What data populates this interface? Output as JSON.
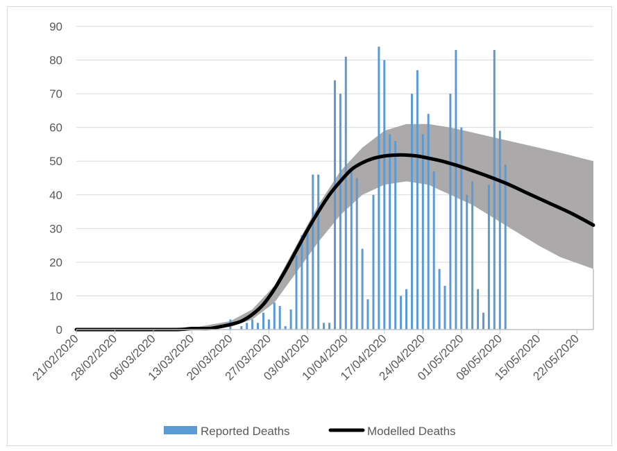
{
  "chart_data": {
    "type": "bar",
    "title": "",
    "xlabel": "",
    "ylabel": "",
    "ylim": [
      0,
      90
    ],
    "yticks": [
      0,
      10,
      20,
      30,
      40,
      50,
      60,
      70,
      80,
      90
    ],
    "xticks": [
      "21/02/2020",
      "28/02/2020",
      "06/03/2020",
      "13/03/2020",
      "20/03/2020",
      "27/03/2020",
      "03/04/2020",
      "10/04/2020",
      "17/04/2020",
      "24/04/2020",
      "01/05/2020",
      "08/05/2020",
      "15/05/2020",
      "22/05/2020"
    ],
    "grid": true,
    "legend_position": "bottom",
    "colors": {
      "bars": "#5b9bd5",
      "line": "#000000",
      "band": "#aba9a9",
      "grid": "#d9d9d9",
      "axis": "#bfbfbf",
      "text": "#595959"
    },
    "series": [
      {
        "name": "Reported Deaths",
        "type": "bar",
        "x": [
          "2020-03-20",
          "2020-03-22",
          "2020-03-23",
          "2020-03-24",
          "2020-03-25",
          "2020-03-26",
          "2020-03-27",
          "2020-03-28",
          "2020-03-29",
          "2020-03-30",
          "2020-03-31",
          "2020-04-01",
          "2020-04-02",
          "2020-04-03",
          "2020-04-04",
          "2020-04-05",
          "2020-04-06",
          "2020-04-07",
          "2020-04-08",
          "2020-04-09",
          "2020-04-10",
          "2020-04-11",
          "2020-04-12",
          "2020-04-13",
          "2020-04-14",
          "2020-04-15",
          "2020-04-16",
          "2020-04-17",
          "2020-04-18",
          "2020-04-19",
          "2020-04-20",
          "2020-04-21",
          "2020-04-22",
          "2020-04-23",
          "2020-04-24",
          "2020-04-25",
          "2020-04-26",
          "2020-04-27",
          "2020-04-28",
          "2020-04-29",
          "2020-04-30",
          "2020-05-01",
          "2020-05-02",
          "2020-05-03",
          "2020-05-04",
          "2020-05-05",
          "2020-05-06",
          "2020-05-07",
          "2020-05-08",
          "2020-05-09"
        ],
        "values": [
          3,
          1,
          2,
          3,
          2,
          5,
          3,
          8,
          7,
          1,
          6,
          22,
          28,
          29,
          46,
          46,
          2,
          2,
          74,
          70,
          81,
          48,
          45,
          24,
          9,
          40,
          84,
          80,
          58,
          56,
          10,
          12,
          70,
          77,
          58,
          64,
          47,
          18,
          13,
          70,
          83,
          60,
          40,
          44,
          12,
          5,
          43,
          83,
          59,
          49
        ]
      },
      {
        "name": "Modelled Deaths",
        "type": "line",
        "x": [
          "2020-02-21",
          "2020-03-01",
          "2020-03-10",
          "2020-03-13",
          "2020-03-16",
          "2020-03-18",
          "2020-03-20",
          "2020-03-22",
          "2020-03-24",
          "2020-03-26",
          "2020-03-28",
          "2020-03-30",
          "2020-04-01",
          "2020-04-03",
          "2020-04-05",
          "2020-04-07",
          "2020-04-09",
          "2020-04-11",
          "2020-04-13",
          "2020-04-15",
          "2020-04-17",
          "2020-04-19",
          "2020-04-21",
          "2020-04-23",
          "2020-04-25",
          "2020-04-27",
          "2020-04-29",
          "2020-05-01",
          "2020-05-05",
          "2020-05-09",
          "2020-05-13",
          "2020-05-17",
          "2020-05-21",
          "2020-05-25"
        ],
        "values": [
          0,
          0,
          0,
          0.3,
          0.3,
          0.8,
          1.5,
          2.5,
          4.5,
          7.5,
          12,
          17.5,
          23.5,
          29.5,
          35,
          40,
          44,
          47.5,
          49.5,
          50.8,
          51.5,
          51.8,
          51.8,
          51.5,
          50.9,
          50.2,
          49.3,
          48.3,
          46,
          43.5,
          40.5,
          37.5,
          34.5,
          31
        ]
      },
      {
        "name": "",
        "type": "band",
        "x": [
          "2020-03-13",
          "2020-03-20",
          "2020-03-24",
          "2020-03-28",
          "2020-04-01",
          "2020-04-05",
          "2020-04-09",
          "2020-04-13",
          "2020-04-17",
          "2020-04-21",
          "2020-04-25",
          "2020-04-29",
          "2020-05-03",
          "2020-05-07",
          "2020-05-11",
          "2020-05-15",
          "2020-05-19",
          "2020-05-25"
        ],
        "upper": [
          0.5,
          2.5,
          6,
          13,
          25,
          37,
          47,
          54,
          59,
          61,
          61,
          60,
          58.5,
          57,
          55.5,
          54,
          52.5,
          50
        ],
        "lower": [
          0.1,
          0.8,
          3,
          8,
          17,
          26,
          34,
          40,
          43,
          44,
          43,
          40,
          37,
          33,
          29,
          25,
          21.5,
          18
        ]
      }
    ],
    "legend": [
      {
        "label": "Reported Deaths",
        "kind": "bar"
      },
      {
        "label": "Modelled Deaths",
        "kind": "line"
      }
    ]
  }
}
